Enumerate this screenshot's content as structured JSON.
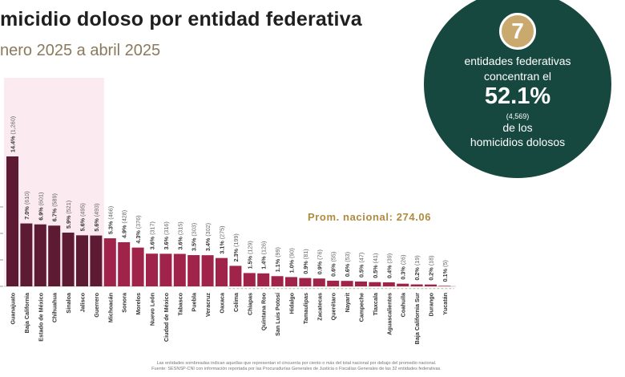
{
  "title": "micidio doloso por entidad federativa",
  "subtitle": "nero 2025 a abril 2025",
  "circle": {
    "badge": "7",
    "line1": "entidades federativas",
    "line2": "concentran el",
    "percent": "52.1%",
    "count": "(4,569)",
    "line3": "de los",
    "line4": "homicidios dolosos"
  },
  "national_label": "Prom. nacional: 274.06",
  "footnote": {
    "line1": "Las entidades sombreadas indican aquellas que representan el cincuenta por ciento o más del total nacional por debajo del promedio nacional.",
    "line2": "Fuente: SESNSP-CNI con información reportada por las Procuradurías Generales de Justicia o Fiscalías Generales de las 32 entidades federativas."
  },
  "colors": {
    "circle": "#17483f",
    "badge": "#c9a96e",
    "bar_highlight": "#5c1a33",
    "bar_regular": "#a0244a",
    "highlight_band": "#fbeaf0",
    "below_avg_band": "#f2f3e4",
    "average_text": "#b08a3e"
  },
  "chart_data": {
    "type": "bar",
    "title": "micidio doloso por entidad federativa",
    "subtitle": "nero 2025 a abril 2025",
    "categories": [
      "Guanajuato",
      "Baja California",
      "Estado de México",
      "Chihuahua",
      "Sinaloa",
      "Jalisco",
      "Guerrero",
      "Michoacán",
      "Sonora",
      "Morelos",
      "Nuevo León",
      "Ciudad de México",
      "Tabasco",
      "Puebla",
      "Veracruz",
      "Oaxaca",
      "Colima",
      "Chiapas",
      "Quintana Roo",
      "San Luis Potosí",
      "Hidalgo",
      "Tamaulipas",
      "Zacatecas",
      "Querétaro",
      "Nayarit",
      "Campeche",
      "Tlaxcala",
      "Aguascalientes",
      "Coahuila",
      "Baja California Sur",
      "Durango",
      "Yucatán"
    ],
    "values": [
      1260,
      610,
      601,
      589,
      521,
      495,
      493,
      466,
      428,
      376,
      317,
      316,
      315,
      303,
      302,
      275,
      199,
      129,
      126,
      99,
      90,
      81,
      76,
      55,
      53,
      47,
      41,
      39,
      26,
      19,
      18,
      5
    ],
    "labels": [
      "14.4% (1,260)",
      "7.0% (610)",
      "6.9% (601)",
      "6.7% (589)",
      "5.9% (521)",
      "5.6% (495)",
      "5.6% (493)",
      "5.3% (466)",
      "4.9% (428)",
      "4.3% (376)",
      "3.6% (317)",
      "3.6% (316)",
      "3.6% (315)",
      "3.5% (303)",
      "3.4% (302)",
      "3.1% (275)",
      "2.3% (199)",
      "1.5% (129)",
      "1.4% (126)",
      "1.1% (99)",
      "1.0% (90)",
      "0.9% (81)",
      "0.9% (76)",
      "0.6% (55)",
      "0.6% (53)",
      "0.5% (47)",
      "0.5% (41)",
      "0.4% (39)",
      "0.3% (26)",
      "0.2% (19)",
      "0.2% (18)",
      "0.1% (5)"
    ],
    "highlighted_count": 7,
    "national_average": 274.06,
    "ylim": [
      0,
      1300
    ],
    "grid": false,
    "legend": "none"
  }
}
